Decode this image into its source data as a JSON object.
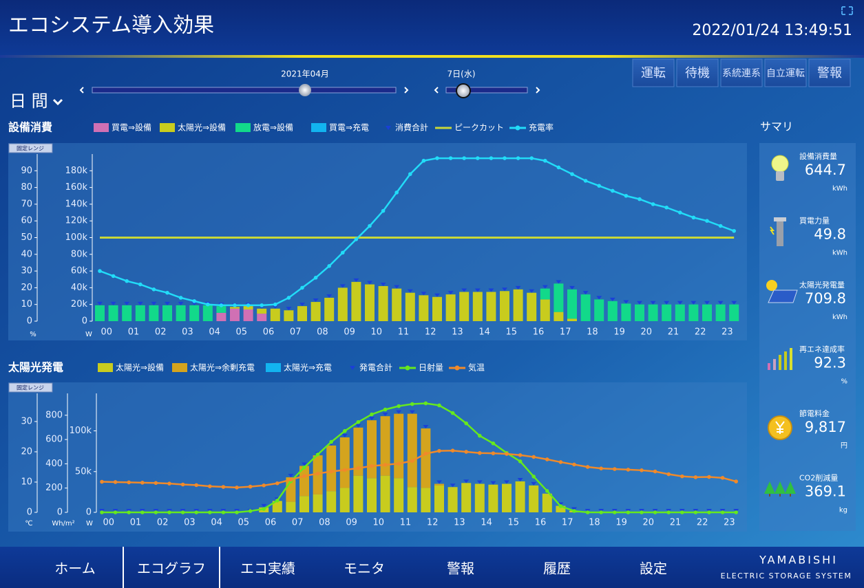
{
  "header": {
    "title": "エコシステム導入効果",
    "datetime": "2022/01/24 13:49:51"
  },
  "status_buttons": [
    "運転",
    "待機",
    "系統連系",
    "自立運転",
    "警報"
  ],
  "period": "日 間",
  "month": "2021年04月",
  "day": "7日(水)",
  "range_tag": "固定レンジ",
  "chart_data": [
    {
      "type": "bar",
      "title": "設備消費",
      "categories": [
        "00",
        null,
        "01",
        null,
        "02",
        null,
        "03",
        null,
        "04",
        null,
        "05",
        null,
        "06",
        null,
        "07",
        null,
        "08",
        null,
        "09",
        null,
        "10",
        null,
        "11",
        null,
        "12",
        null,
        "13",
        null,
        "14",
        null,
        "15",
        null,
        "16",
        null,
        "17",
        null,
        "18",
        null,
        "19",
        null,
        "20",
        null,
        "21",
        null,
        "22",
        null,
        "23",
        null
      ],
      "ylabel": "W",
      "ylim": [
        0,
        200000
      ],
      "yticks": [
        0,
        {
          "value": 20000,
          "label": "20k"
        },
        {
          "value": 40000,
          "label": "40k"
        },
        {
          "value": 60000,
          "label": "60k"
        },
        {
          "value": 80000,
          "label": "80k"
        },
        {
          "value": 100000,
          "label": "100k"
        },
        {
          "value": 120000,
          "label": "120k"
        },
        {
          "value": 140000,
          "label": "140k"
        },
        {
          "value": 160000,
          "label": "160k"
        },
        {
          "value": 180000,
          "label": "180k"
        }
      ],
      "y2label": "%",
      "y2lim": [
        0,
        100
      ],
      "y2ticks": [
        0,
        10,
        20,
        30,
        40,
        50,
        60,
        70,
        80,
        90
      ],
      "series": [
        {
          "name": "買電⇒設備",
          "kind": "bar",
          "color": "#d070b4",
          "values": [
            0,
            0,
            0,
            0,
            0,
            0,
            0,
            0,
            0,
            10000,
            15000,
            14000,
            9000,
            0,
            0,
            0,
            0,
            0,
            0,
            0,
            0,
            0,
            0,
            0,
            0,
            0,
            0,
            0,
            0,
            0,
            0,
            0,
            0,
            0,
            0,
            0,
            0,
            0,
            0,
            0,
            0,
            0,
            0,
            0,
            0,
            0,
            0,
            0
          ]
        },
        {
          "name": "太陽光⇒設備",
          "kind": "bar",
          "color": "#c8cc1e",
          "values": [
            0,
            0,
            0,
            0,
            0,
            0,
            0,
            0,
            0,
            0,
            2000,
            4000,
            6000,
            15000,
            13000,
            18000,
            23000,
            28000,
            40000,
            47000,
            44000,
            42000,
            39000,
            34000,
            31000,
            29000,
            32000,
            35000,
            35000,
            35000,
            36000,
            38000,
            34000,
            26000,
            11000,
            3000,
            0,
            0,
            0,
            0,
            0,
            0,
            0,
            0,
            0,
            0,
            0,
            0
          ]
        },
        {
          "name": "放電⇒設備",
          "kind": "bar",
          "color": "#12d98a",
          "values": [
            19000,
            19000,
            19000,
            19000,
            19000,
            19000,
            19000,
            19000,
            19000,
            8000,
            0,
            0,
            0,
            0,
            0,
            0,
            0,
            0,
            0,
            0,
            0,
            0,
            0,
            0,
            0,
            0,
            0,
            0,
            0,
            0,
            0,
            0,
            0,
            13000,
            34000,
            35000,
            32000,
            26000,
            24000,
            21000,
            20000,
            20000,
            20000,
            20000,
            20000,
            20000,
            20000,
            20000
          ]
        },
        {
          "name": "買電⇒充電",
          "kind": "bar",
          "color": "#12b4f0",
          "values": [
            0,
            0,
            0,
            0,
            0,
            0,
            0,
            0,
            0,
            0,
            0,
            0,
            0,
            0,
            0,
            0,
            0,
            0,
            0,
            0,
            0,
            0,
            0,
            0,
            0,
            0,
            0,
            0,
            0,
            0,
            0,
            0,
            0,
            0,
            0,
            0,
            0,
            0,
            0,
            0,
            0,
            0,
            0,
            0,
            0,
            0,
            0,
            0
          ]
        },
        {
          "name": "消費合計",
          "kind": "total",
          "color": "#1a3fd8"
        },
        {
          "name": "ピークカット",
          "kind": "hline",
          "color": "#c8d838",
          "value": 100000
        },
        {
          "name": "充電率",
          "kind": "line",
          "axis": "y2",
          "color": "#22dcf8",
          "values": [
            30,
            27,
            24,
            22,
            19,
            17,
            14,
            12,
            10,
            9.5,
            9.5,
            9.5,
            9.5,
            10,
            14,
            20,
            26,
            33,
            41,
            49,
            57,
            66,
            77,
            88,
            96,
            97.5,
            97.5,
            97.5,
            97.5,
            97.5,
            97.5,
            97.5,
            97.5,
            96,
            92,
            88,
            84,
            81,
            78,
            75,
            73,
            70,
            68,
            65,
            62,
            60,
            57,
            54
          ]
        }
      ]
    },
    {
      "type": "bar",
      "title": "太陽光発電",
      "categories": [
        "00",
        null,
        "01",
        null,
        "02",
        null,
        "03",
        null,
        "04",
        null,
        "05",
        null,
        "06",
        null,
        "07",
        null,
        "08",
        null,
        "09",
        null,
        "10",
        null,
        "11",
        null,
        "12",
        null,
        "13",
        null,
        "14",
        null,
        "15",
        null,
        "16",
        null,
        "17",
        null,
        "18",
        null,
        "19",
        null,
        "20",
        null,
        "21",
        null,
        "22",
        null,
        "23",
        null
      ],
      "ylabel": "W",
      "ylim": [
        0,
        146000
      ],
      "yticks": [
        0,
        {
          "value": 50000,
          "label": "50k"
        },
        {
          "value": 100000,
          "label": "100k"
        }
      ],
      "y2label": "Wh/m²",
      "y2lim": [
        0,
        980
      ],
      "y2ticks": [
        0,
        200,
        400,
        600,
        800
      ],
      "y3label": "℃",
      "y3lim": [
        0,
        39.3
      ],
      "y3ticks": [
        0,
        10,
        20,
        30
      ],
      "series": [
        {
          "name": "太陽光⇒設備",
          "kind": "bar",
          "color": "#c8cc1e",
          "values": [
            0,
            0,
            0,
            0,
            0,
            0,
            0,
            0,
            0,
            0,
            0,
            0,
            6000,
            14000,
            13000,
            20000,
            22000,
            26000,
            30000,
            45000,
            42000,
            45000,
            42000,
            31000,
            30000,
            33000,
            31000,
            36000,
            35000,
            34000,
            35000,
            38000,
            33000,
            23000,
            8000,
            2000,
            0,
            0,
            0,
            0,
            0,
            0,
            0,
            0,
            0,
            0,
            0,
            0
          ]
        },
        {
          "name": "太陽光⇒余剰充電",
          "kind": "bar",
          "color": "#d4a41e",
          "values": [
            0,
            0,
            0,
            0,
            0,
            0,
            0,
            0,
            0,
            0,
            0,
            0,
            0,
            0,
            30000,
            37000,
            48000,
            56000,
            62000,
            59000,
            71000,
            73000,
            79000,
            90000,
            73000,
            2000,
            0,
            0,
            0,
            0,
            0,
            0,
            0,
            0,
            0,
            0,
            0,
            0,
            0,
            0,
            0,
            0,
            0,
            0,
            0,
            0,
            0,
            0
          ]
        },
        {
          "name": "太陽光⇒充電",
          "kind": "bar",
          "color": "#12b4f0",
          "values": [
            0,
            0,
            0,
            0,
            0,
            0,
            0,
            0,
            0,
            0,
            0,
            0,
            0,
            0,
            0,
            0,
            0,
            0,
            0,
            0,
            0,
            0,
            0,
            0,
            0,
            0,
            0,
            0,
            0,
            0,
            0,
            0,
            0,
            0,
            0,
            0,
            0,
            0,
            0,
            0,
            0,
            0,
            0,
            0,
            0,
            0,
            0,
            0
          ]
        },
        {
          "name": "発電合計",
          "kind": "total",
          "color": "#1a3fd8"
        },
        {
          "name": "日射量",
          "kind": "line",
          "axis": "y2",
          "color": "#66e81e",
          "values": [
            0,
            0,
            0,
            0,
            0,
            0,
            0,
            0,
            0,
            0,
            0,
            11,
            28,
            97,
            256,
            370,
            477,
            580,
            670,
            744,
            807,
            847,
            875,
            892,
            898,
            881,
            818,
            733,
            631,
            568,
            489,
            420,
            295,
            176,
            51,
            11,
            0,
            0,
            0,
            0,
            0,
            0,
            0,
            0,
            0,
            0,
            0,
            0
          ]
        },
        {
          "name": "気温",
          "kind": "line",
          "axis": "y3",
          "color": "#f08a2a",
          "values": [
            10.1,
            10.0,
            9.9,
            9.8,
            9.7,
            9.5,
            9.2,
            9.0,
            8.6,
            8.4,
            8.2,
            8.5,
            8.9,
            9.6,
            10.8,
            12.0,
            12.8,
            13.5,
            14.0,
            14.6,
            15.3,
            15.7,
            16.1,
            17.0,
            19.4,
            20.3,
            20.4,
            20.0,
            19.6,
            19.5,
            19.3,
            18.9,
            18.3,
            17.5,
            16.6,
            15.8,
            15.0,
            14.5,
            14.3,
            14.1,
            13.9,
            13.5,
            12.6,
            11.9,
            11.6,
            11.7,
            11.4,
            10.2
          ]
        }
      ]
    }
  ],
  "summary": {
    "title": "サマリ",
    "items": [
      {
        "label": "設備消費量",
        "value": 644.7,
        "unit": "kWh"
      },
      {
        "label": "買電力量",
        "value": 49.8,
        "unit": "kWh"
      },
      {
        "label": "太陽光発電量",
        "value": 709.8,
        "unit": "kWh"
      },
      {
        "label": "再エネ達成率",
        "value": 92.3,
        "unit": "%"
      },
      {
        "label": "節電料金",
        "value": 9817,
        "value_label": "9,817",
        "unit": "円"
      },
      {
        "label": "CO2削減量",
        "value": 369.1,
        "unit": "kg"
      }
    ]
  },
  "nav": {
    "items": [
      "ホーム",
      "エコグラフ",
      "エコ実績",
      "モニタ",
      "警報",
      "履歴",
      "設定"
    ],
    "active": 1
  },
  "brand": {
    "name": "YAMABISHI",
    "tagline": "ELECTRIC STORAGE SYSTEM"
  }
}
